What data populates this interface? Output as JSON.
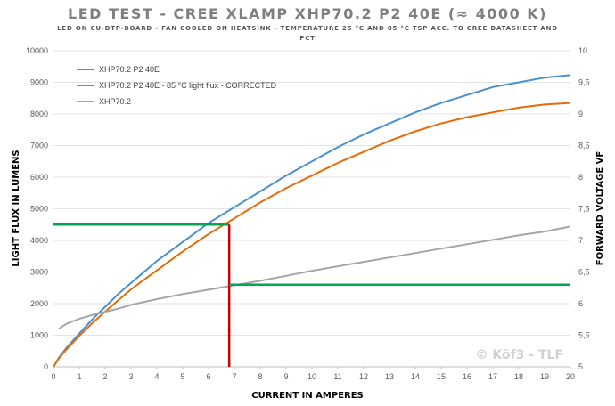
{
  "chart_data": {
    "type": "line",
    "title": "LED TEST - CREE XLAMP XHP70.2 P2 40E (≈ 4000 K)",
    "subtitle": "LED ON CU-DTP-BOARD - FAN COOLED ON HEATSINK - TEMPERATURE 25 °C AND 85 °C TSP ACC. TO CREE DATASHEET AND PCT",
    "xlabel": "CURRENT IN AMPERES",
    "ylabel": "LIGHT FLUX IN LUMENS",
    "y2label": "FORWARD VOLTAGE VF",
    "xlim": [
      0,
      20
    ],
    "ylim": [
      0,
      10000
    ],
    "y2lim": [
      5,
      10
    ],
    "xticks": [
      "0",
      "1",
      "2",
      "3",
      "4",
      "5",
      "6",
      "7",
      "8",
      "9",
      "10",
      "11",
      "12",
      "13",
      "14",
      "15",
      "16",
      "17",
      "18",
      "19",
      "20"
    ],
    "yticks": [
      "0",
      "1000",
      "2000",
      "3000",
      "4000",
      "5000",
      "6000",
      "7000",
      "8000",
      "9000",
      "10000"
    ],
    "y2ticks": [
      "5",
      "5,5",
      "6",
      "6,5",
      "7",
      "7,5",
      "8",
      "8,5",
      "9",
      "9,5",
      "10"
    ],
    "grid": "horizontal",
    "legend_position": "top-left",
    "x": [
      0,
      0.2,
      0.5,
      1,
      1.5,
      2,
      2.5,
      3,
      4,
      5,
      6,
      7,
      8,
      9,
      10,
      11,
      12,
      13,
      14,
      15,
      16,
      17,
      18,
      19,
      20
    ],
    "series": [
      {
        "name": "XHP70.2 P2 40E",
        "axis": "left",
        "color": "#4a8fcf",
        "values": [
          0,
          280,
          600,
          1050,
          1500,
          1900,
          2300,
          2650,
          3350,
          3950,
          4550,
          5050,
          5550,
          6050,
          6500,
          6950,
          7350,
          7700,
          8050,
          8350,
          8600,
          8850,
          9000,
          9150,
          9230
        ]
      },
      {
        "name": "XHP70.2 P2 40E - 85 °C light flux - CORRECTED",
        "axis": "left",
        "color": "#e46c0a",
        "values": [
          0,
          260,
          550,
          980,
          1380,
          1750,
          2100,
          2450,
          3050,
          3650,
          4200,
          4700,
          5200,
          5650,
          6050,
          6450,
          6800,
          7150,
          7450,
          7700,
          7900,
          8050,
          8200,
          8300,
          8350
        ]
      },
      {
        "name": "XHP70.2",
        "axis": "right",
        "color": "#a5a5a5",
        "values": [
          null,
          5.6,
          5.68,
          5.76,
          5.82,
          5.87,
          5.92,
          5.98,
          6.07,
          6.15,
          6.22,
          6.29,
          6.36,
          6.44,
          6.52,
          6.59,
          6.66,
          6.73,
          6.8,
          6.87,
          6.94,
          7.01,
          7.08,
          7.14,
          7.22
        ]
      }
    ],
    "reference_lines": [
      {
        "color": "#00a651",
        "from": [
          0,
          4500
        ],
        "to": [
          6.8,
          4500
        ],
        "axis": "left"
      },
      {
        "color": "#cc0000",
        "from": [
          6.8,
          0
        ],
        "to": [
          6.8,
          4500
        ],
        "axis": "left"
      },
      {
        "color": "#00a651",
        "from": [
          6.8,
          2600
        ],
        "to": [
          20,
          2600
        ],
        "axis": "left"
      }
    ],
    "watermark": "© Köf3 - TLF"
  }
}
